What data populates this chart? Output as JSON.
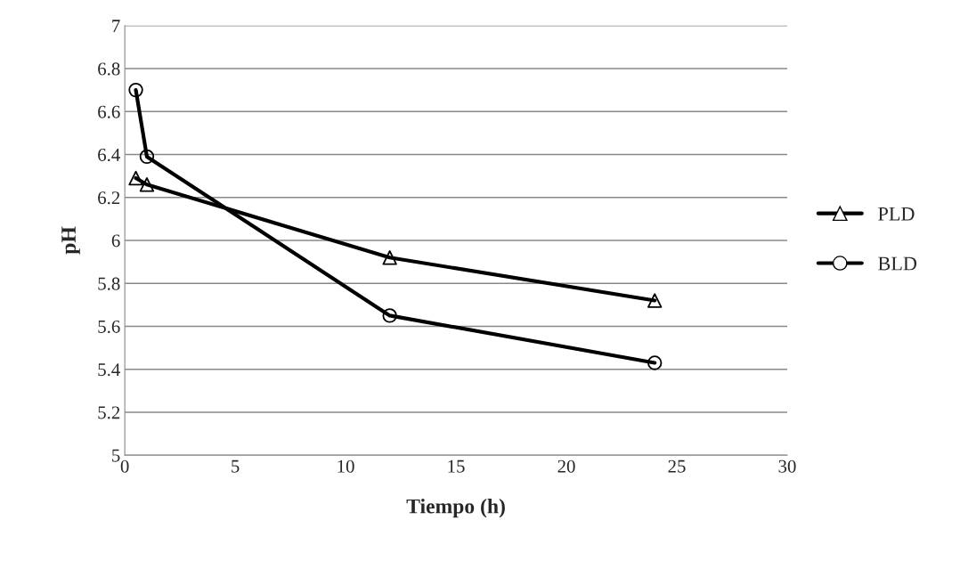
{
  "chart_data": {
    "type": "line",
    "xlabel": "Tiempo (h)",
    "ylabel": "pH",
    "series": [
      {
        "name": "PLD",
        "color": "#000000",
        "marker": "triangle",
        "x": [
          0.5,
          1,
          12,
          24
        ],
        "values": [
          6.29,
          6.26,
          5.92,
          5.72
        ]
      },
      {
        "name": "BLD",
        "color": "#000000",
        "marker": "circle",
        "x": [
          0.5,
          1,
          12,
          24
        ],
        "values": [
          6.7,
          6.39,
          5.65,
          5.43
        ]
      }
    ],
    "xlim": [
      0,
      30
    ],
    "xticks": [
      0,
      5,
      10,
      15,
      20,
      25,
      30
    ],
    "ylim": [
      5,
      7
    ],
    "yticks": [
      5,
      5.2,
      5.4,
      5.6,
      5.8,
      6,
      6.2,
      6.4,
      6.6,
      6.8,
      7
    ],
    "grid": "y",
    "legend": "right",
    "line_style": "solid"
  }
}
